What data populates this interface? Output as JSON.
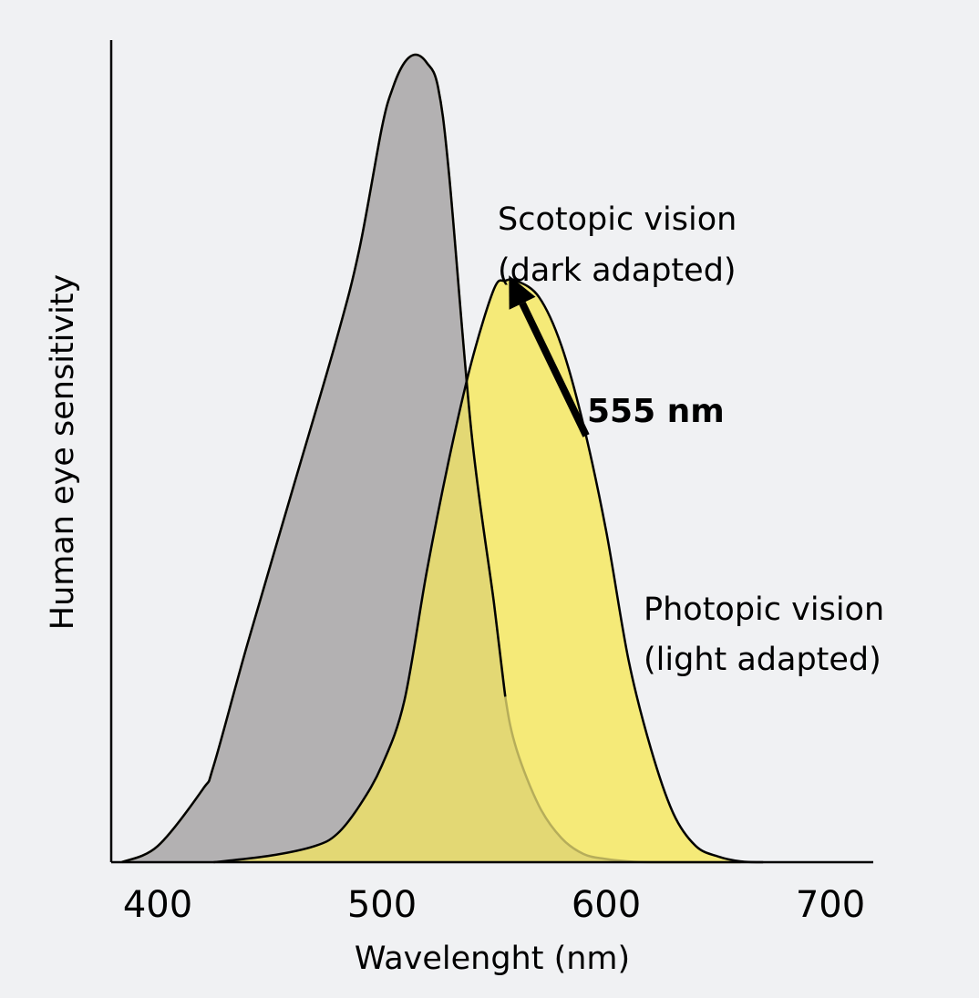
{
  "chart_data": {
    "type": "area",
    "xlabel": "Wavelenght (nm)",
    "ylabel": "Human eye sensitivity",
    "xlim": [
      380,
      720
    ],
    "ylim": [
      0,
      1.0
    ],
    "x_ticks": [
      400,
      500,
      600,
      700
    ],
    "y_ticks_shown": false,
    "grid": false,
    "legend": "none",
    "series": [
      {
        "name": "Scotopic vision (dark adapted)",
        "color": "#b3b1b2",
        "x": [
          384,
          400,
          420,
          425,
          440,
          460,
          480,
          490,
          500,
          505,
          510,
          515,
          520,
          525,
          530,
          540,
          550,
          555,
          560,
          570,
          580,
          590,
          600,
          610,
          620,
          640,
          660
        ],
        "y": [
          0.0,
          0.02,
          0.09,
          0.12,
          0.27,
          0.46,
          0.65,
          0.76,
          0.91,
          0.96,
          0.99,
          1.0,
          0.99,
          0.96,
          0.85,
          0.53,
          0.32,
          0.205,
          0.14,
          0.07,
          0.03,
          0.01,
          0.004,
          0.001,
          0.0,
          0.0,
          0.0
        ]
      },
      {
        "name": "Photopic vision (light adapted)",
        "color": "#f5ea78",
        "x": [
          425,
          450,
          470,
          480,
          490,
          500,
          510,
          520,
          530,
          540,
          550,
          555,
          560,
          570,
          580,
          590,
          600,
          610,
          620,
          630,
          640,
          650,
          660,
          670
        ],
        "y": [
          0.0,
          0.008,
          0.02,
          0.035,
          0.07,
          0.12,
          0.2,
          0.36,
          0.5,
          0.62,
          0.71,
          0.72,
          0.72,
          0.7,
          0.64,
          0.54,
          0.41,
          0.25,
          0.14,
          0.06,
          0.02,
          0.007,
          0.001,
          0.0
        ]
      }
    ],
    "overlap_color": "#e3d874",
    "annotations": [
      {
        "text": "Scotopic vision",
        "series": "Scotopic vision (dark adapted)"
      },
      {
        "text": "(dark adapted)",
        "series": "Scotopic vision (dark adapted)"
      },
      {
        "text": "Photopic vision",
        "series": "Photopic vision (light adapted)"
      },
      {
        "text": "(light adapted)",
        "series": "Photopic vision (light adapted)"
      }
    ],
    "callout": {
      "text": "555 nm",
      "x": 555
    }
  }
}
